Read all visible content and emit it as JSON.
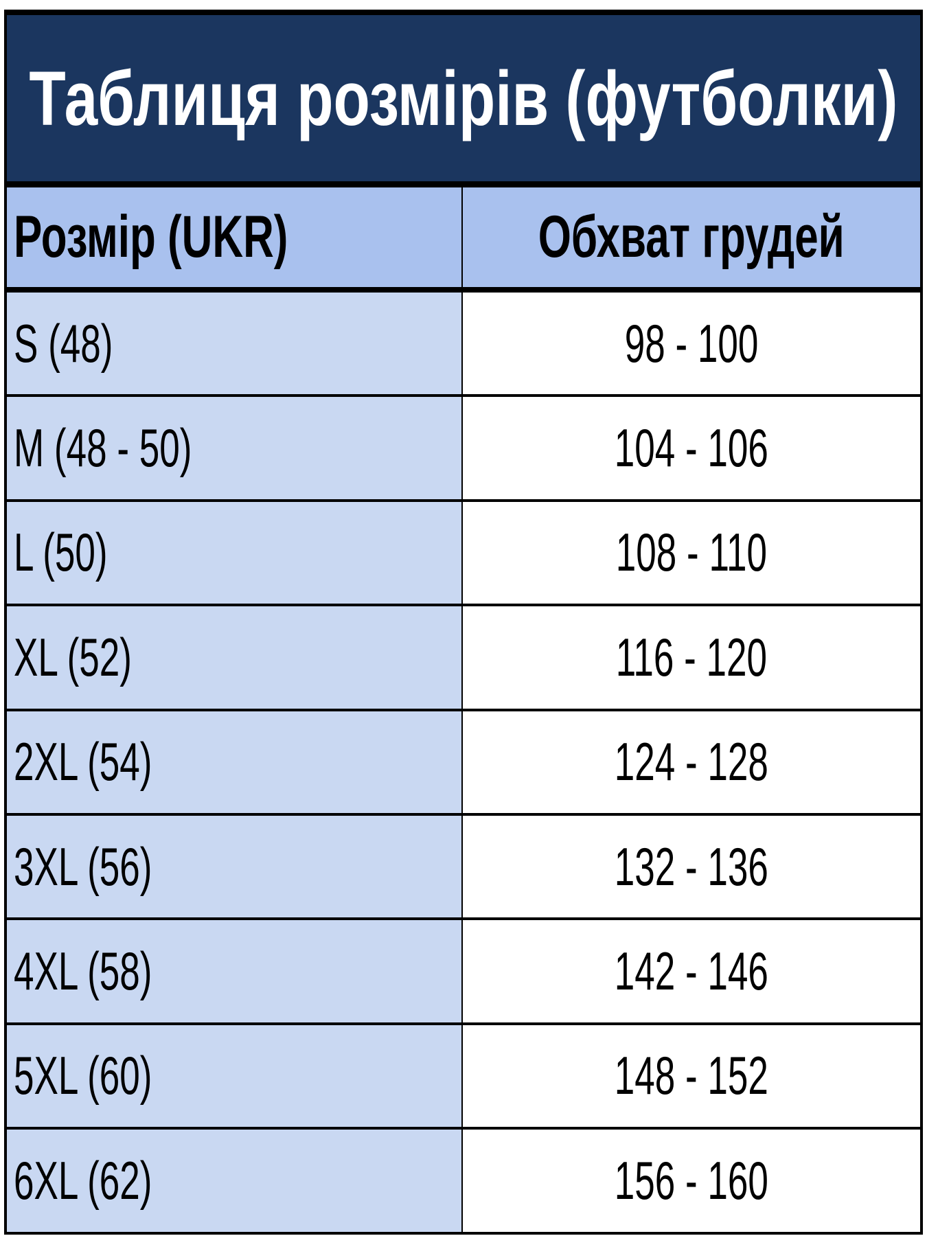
{
  "title": "Таблиця розмірів (футболки)",
  "columns": [
    "Розмір (UKR)",
    "Обхват грудей"
  ],
  "rows": [
    {
      "size": "S (48)",
      "chest": "98 - 100"
    },
    {
      "size": "M (48 - 50)",
      "chest": "104 - 106"
    },
    {
      "size": "L (50)",
      "chest": "108 - 110"
    },
    {
      "size": "XL (52)",
      "chest": "116 - 120"
    },
    {
      "size": "2XL (54)",
      "chest": "124 - 128"
    },
    {
      "size": "3XL (56)",
      "chest": "132 - 136"
    },
    {
      "size": "4XL (58)",
      "chest": "142 - 146"
    },
    {
      "size": "5XL (60)",
      "chest": "148 - 152"
    },
    {
      "size": "6XL (62)",
      "chest": "156 - 160"
    }
  ],
  "colors": {
    "title_bg": "#1b365f",
    "header_bg": "#a9c1ee",
    "size_col_bg": "#c9d8f2"
  }
}
